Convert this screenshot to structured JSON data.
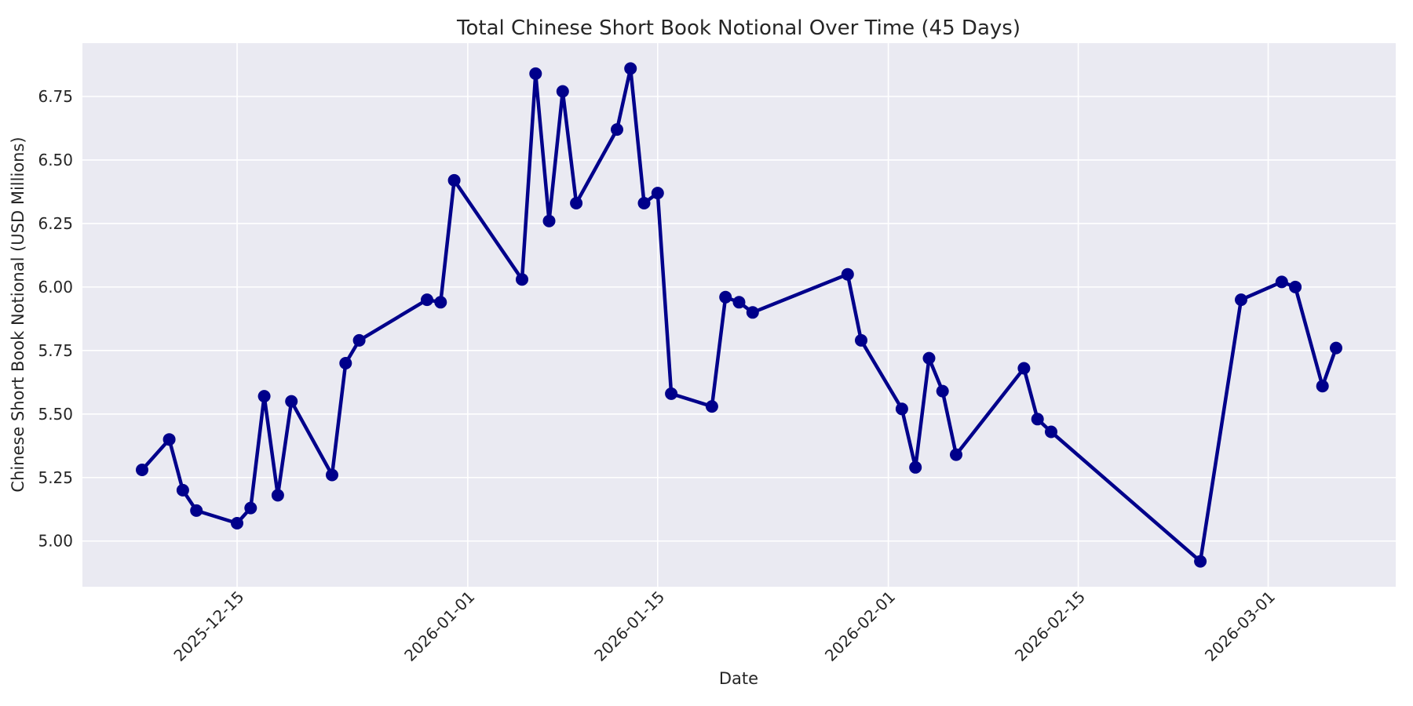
{
  "chart_data": {
    "type": "line",
    "title": "Total Chinese Short Book Notional Over Time (45 Days)",
    "xlabel": "Date",
    "ylabel": "Chinese Short Book Notional (USD Millions)",
    "legend_position": "none",
    "grid": true,
    "x_ticks": [
      "2025-12-15",
      "2026-01-01",
      "2026-01-15",
      "2026-02-01",
      "2026-02-15",
      "2026-03-01"
    ],
    "y_ticks": [
      5.0,
      5.25,
      5.5,
      5.75,
      6.0,
      6.25,
      6.5,
      6.75
    ],
    "x_epoch": "2025-12-15",
    "xlim_days": [
      -11.4,
      85.4
    ],
    "ylim": [
      4.82,
      6.96
    ],
    "styles": {
      "figure_bg": "#FFFFFF",
      "plot_bg": "#EAEAF2",
      "grid_color": "#FFFFFF",
      "text_color": "#262626",
      "line_color": "#00008B"
    },
    "series": [
      {
        "name": "Total Chinese Short Book Notional",
        "color": "#00008B",
        "marker": "circle",
        "points": [
          {
            "date": "2025-12-08",
            "value": 5.28
          },
          {
            "date": "2025-12-10",
            "value": 5.4
          },
          {
            "date": "2025-12-11",
            "value": 5.2
          },
          {
            "date": "2025-12-12",
            "value": 5.12
          },
          {
            "date": "2025-12-15",
            "value": 5.07
          },
          {
            "date": "2025-12-16",
            "value": 5.13
          },
          {
            "date": "2025-12-17",
            "value": 5.57
          },
          {
            "date": "2025-12-18",
            "value": 5.18
          },
          {
            "date": "2025-12-19",
            "value": 5.55
          },
          {
            "date": "2025-12-22",
            "value": 5.26
          },
          {
            "date": "2025-12-23",
            "value": 5.7
          },
          {
            "date": "2025-12-24",
            "value": 5.79
          },
          {
            "date": "2025-12-29",
            "value": 5.95
          },
          {
            "date": "2025-12-30",
            "value": 5.94
          },
          {
            "date": "2025-12-31",
            "value": 6.42
          },
          {
            "date": "2026-01-05",
            "value": 6.03
          },
          {
            "date": "2026-01-06",
            "value": 6.84
          },
          {
            "date": "2026-01-07",
            "value": 6.26
          },
          {
            "date": "2026-01-08",
            "value": 6.77
          },
          {
            "date": "2026-01-09",
            "value": 6.33
          },
          {
            "date": "2026-01-12",
            "value": 6.62
          },
          {
            "date": "2026-01-13",
            "value": 6.86
          },
          {
            "date": "2026-01-14",
            "value": 6.33
          },
          {
            "date": "2026-01-15",
            "value": 6.37
          },
          {
            "date": "2026-01-16",
            "value": 5.58
          },
          {
            "date": "2026-01-19",
            "value": 5.53
          },
          {
            "date": "2026-01-20",
            "value": 5.96
          },
          {
            "date": "2026-01-21",
            "value": 5.94
          },
          {
            "date": "2026-01-22",
            "value": 5.9
          },
          {
            "date": "2026-01-29",
            "value": 6.05
          },
          {
            "date": "2026-01-30",
            "value": 5.79
          },
          {
            "date": "2026-02-02",
            "value": 5.52
          },
          {
            "date": "2026-02-03",
            "value": 5.29
          },
          {
            "date": "2026-02-04",
            "value": 5.72
          },
          {
            "date": "2026-02-05",
            "value": 5.59
          },
          {
            "date": "2026-02-06",
            "value": 5.34
          },
          {
            "date": "2026-02-11",
            "value": 5.68
          },
          {
            "date": "2026-02-12",
            "value": 5.48
          },
          {
            "date": "2026-02-13",
            "value": 5.43
          },
          {
            "date": "2026-02-24",
            "value": 4.92
          },
          {
            "date": "2026-02-27",
            "value": 5.95
          },
          {
            "date": "2026-03-02",
            "value": 6.02
          },
          {
            "date": "2026-03-03",
            "value": 6.0
          },
          {
            "date": "2026-03-05",
            "value": 5.61
          },
          {
            "date": "2026-03-06",
            "value": 5.76
          }
        ]
      }
    ]
  }
}
